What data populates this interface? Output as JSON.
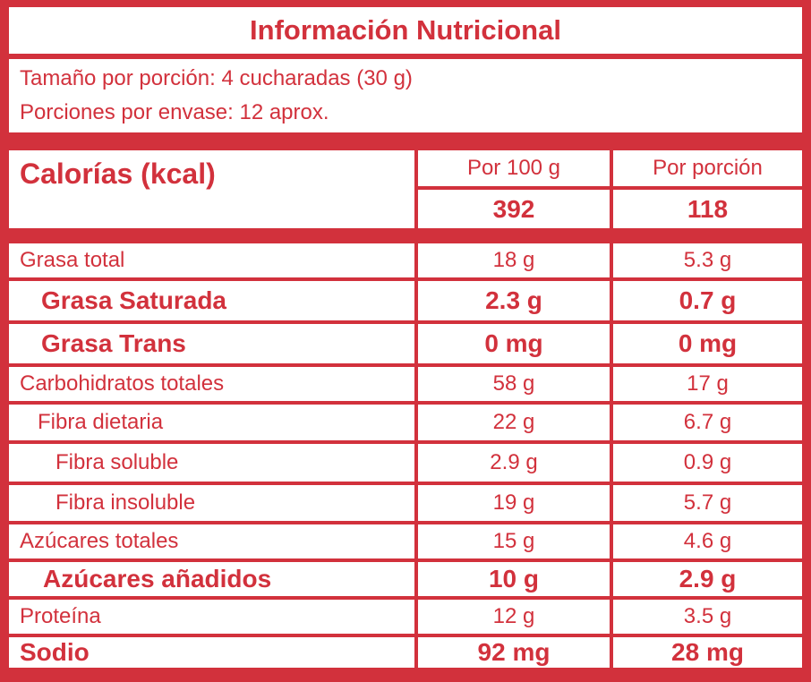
{
  "title": "Información Nutricional",
  "serving": [
    "Tamaño por porción: 4 cucharadas (30 g)",
    "Porciones por envase: 12 aprox."
  ],
  "calories": {
    "label": "Calorías (kcal)",
    "headers": [
      "Por 100 g",
      "Por porción"
    ],
    "values": [
      "392",
      "118"
    ]
  },
  "table": {
    "rows": [
      [
        "Grasa total",
        "18 g",
        "5.3 g"
      ],
      [
        "Grasa Saturada",
        "2.3 g",
        "0.7 g"
      ],
      [
        "Grasa Trans",
        "0 mg",
        "0 mg"
      ],
      [
        "Carbohidratos totales",
        "58 g",
        "17 g"
      ],
      [
        "Fibra dietaria",
        "22 g",
        "6.7 g"
      ],
      [
        "Fibra soluble",
        "2.9 g",
        "0.9 g"
      ],
      [
        "Fibra insoluble",
        "19 g",
        "5.7 g"
      ],
      [
        "Azúcares totales",
        "15 g",
        "4.6 g"
      ],
      [
        "Azúcares añadidos",
        "10 g",
        "2.9 g"
      ],
      [
        "Proteína",
        "12 g",
        "3.5 g"
      ],
      [
        "Sodio",
        "92 mg",
        "28 mg"
      ]
    ]
  }
}
